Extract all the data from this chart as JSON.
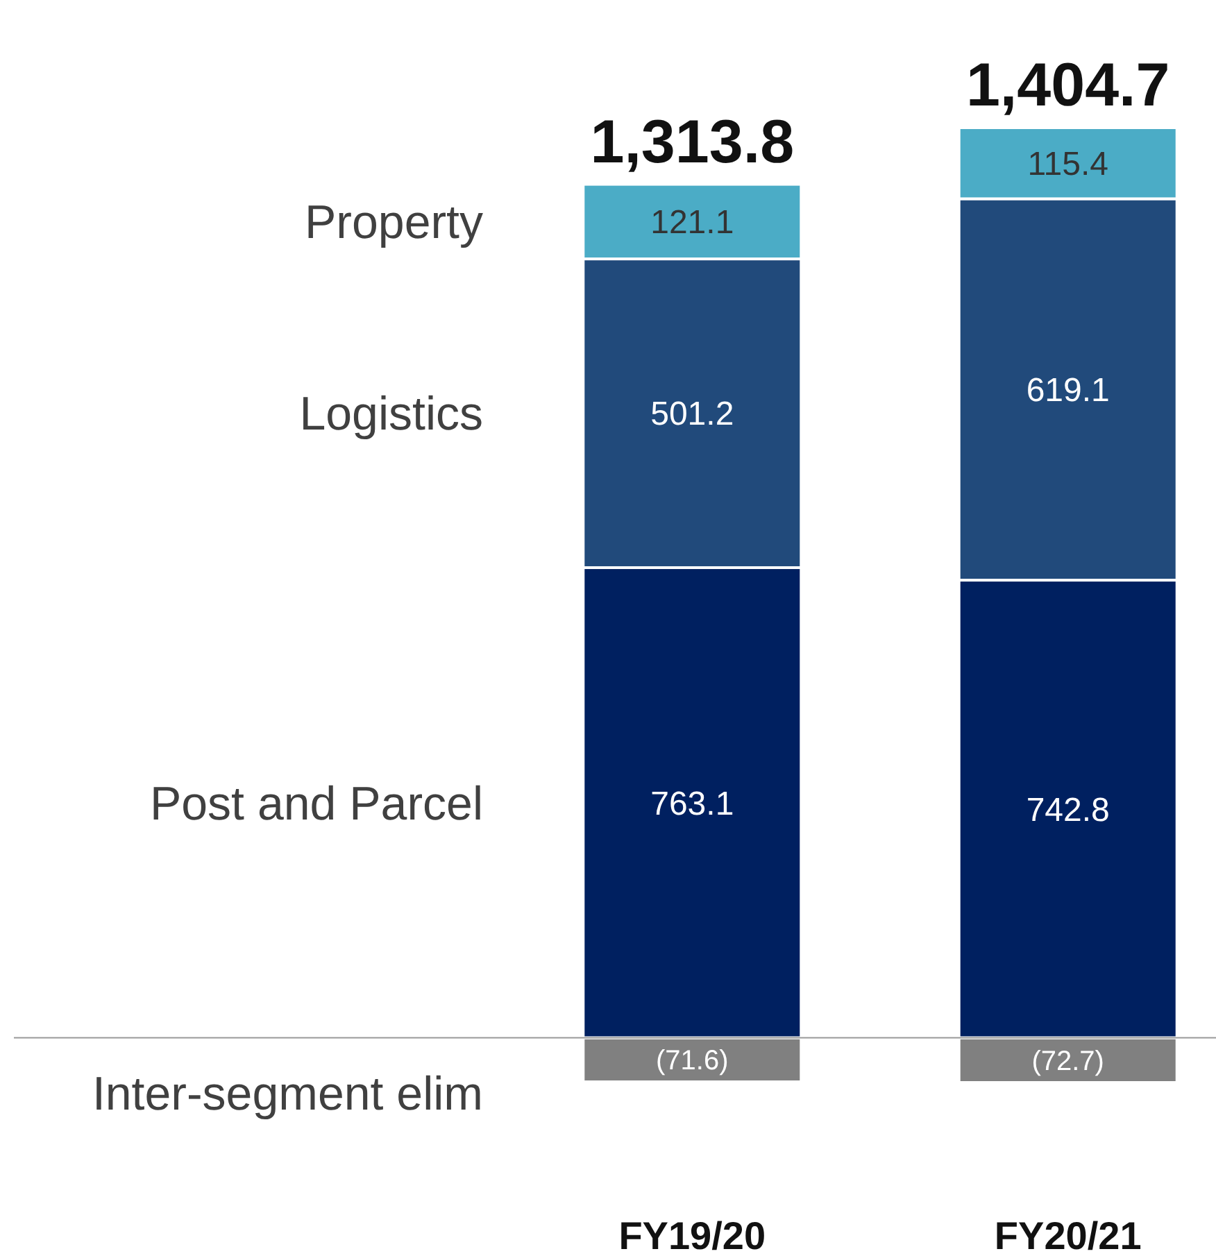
{
  "chart_data": {
    "type": "bar",
    "stacked": true,
    "legend": "left",
    "categories": [
      "FY19/20",
      "FY20/21"
    ],
    "series": [
      {
        "name": "Inter-segment elim",
        "color": "#808080",
        "values": [
          -71.6,
          -72.7
        ],
        "value_labels": [
          "(71.6)",
          "(72.7)"
        ]
      },
      {
        "name": "Post and Parcel",
        "color": "#002060",
        "values": [
          763.1,
          742.8
        ],
        "value_labels": [
          "763.1",
          "742.8"
        ]
      },
      {
        "name": "Logistics",
        "color": "#214a7b",
        "values": [
          501.2,
          619.1
        ],
        "value_labels": [
          "501.2",
          "619.1"
        ]
      },
      {
        "name": "Property",
        "color": "#4bacc6",
        "values": [
          121.1,
          115.4
        ],
        "value_labels": [
          "121.1",
          "115.4"
        ]
      }
    ],
    "totals": [
      "1,313.8",
      "1,404.7"
    ]
  }
}
